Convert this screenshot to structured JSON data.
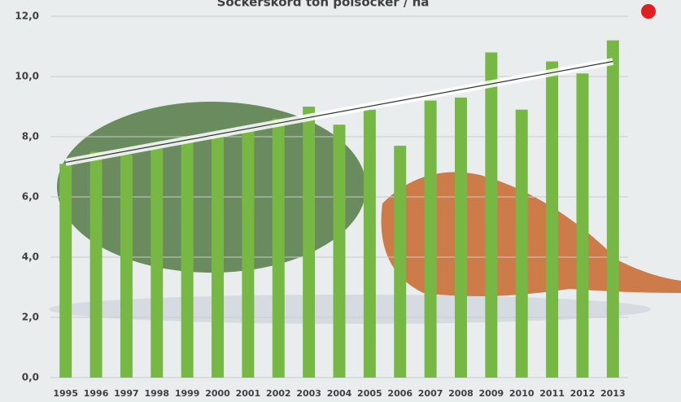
{
  "chart_data": {
    "type": "bar",
    "title": "Sockerskörd ton polsocker / ha",
    "categories": [
      "1995",
      "1996",
      "1997",
      "1998",
      "1999",
      "2000",
      "2001",
      "2002",
      "2003",
      "2004",
      "2005",
      "2006",
      "2007",
      "2008",
      "2009",
      "2010",
      "2011",
      "2012",
      "2013"
    ],
    "values": [
      7.1,
      7.5,
      7.4,
      7.6,
      7.9,
      8.1,
      8.2,
      8.6,
      9.0,
      8.4,
      8.9,
      7.7,
      9.2,
      9.3,
      10.8,
      8.9,
      10.5,
      10.1,
      11.2
    ],
    "color": "#76b843",
    "trendline": [
      7.15,
      10.5
    ],
    "ylim": [
      0,
      12
    ],
    "yticks": [
      {
        "value": 0,
        "label": "0,0"
      },
      {
        "value": 2,
        "label": "2,0"
      },
      {
        "value": 4,
        "label": "4,0"
      },
      {
        "value": 6,
        "label": "6,0"
      },
      {
        "value": 8,
        "label": "8,0"
      },
      {
        "value": 10,
        "label": "10,0"
      },
      {
        "value": 12,
        "label": "12,0"
      }
    ],
    "grid": true
  }
}
